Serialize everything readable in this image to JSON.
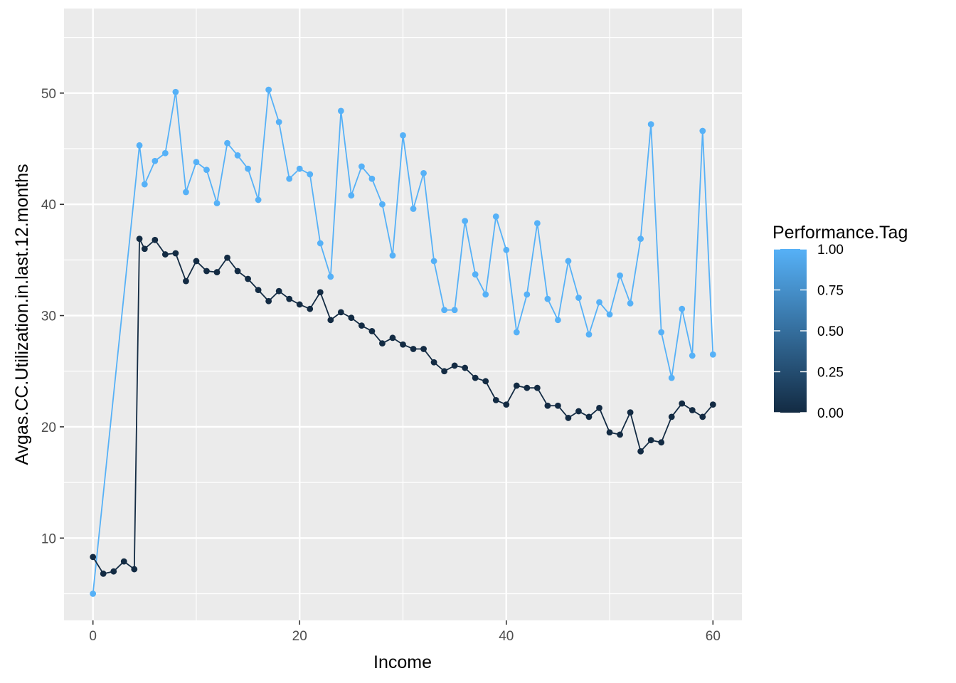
{
  "chart_data": {
    "type": "line",
    "title": "",
    "xlabel": "Income",
    "ylabel": "Avgas.CC.Utilization.in.last.12.months",
    "xlim": [
      -2.8,
      62.8
    ],
    "ylim": [
      2.6,
      57.6
    ],
    "x_ticks": [
      0,
      20,
      40,
      60
    ],
    "x_tick_labels": [
      "0",
      "20",
      "40",
      "60"
    ],
    "y_ticks": [
      10,
      20,
      30,
      40,
      50
    ],
    "y_tick_labels": [
      "10",
      "20",
      "30",
      "40",
      "50"
    ],
    "grid": true,
    "legend": {
      "title": "Performance.Tag",
      "placement": "right",
      "type": "colorbar",
      "low_color": "#132B43",
      "high_color": "#56B1F7",
      "ticks": [
        0,
        0.25,
        0.5,
        0.75,
        1
      ],
      "tick_labels": [
        "0.00",
        "0.25",
        "0.50",
        "0.75",
        "1.00"
      ]
    },
    "series": [
      {
        "tag": 1,
        "color": "#56B1F7",
        "x": [
          0,
          4.5,
          5,
          6,
          7,
          8,
          9,
          10,
          11,
          12,
          13,
          14,
          15,
          16,
          17,
          18,
          19,
          20,
          21,
          22,
          23,
          24,
          25,
          26,
          27,
          28,
          29,
          30,
          31,
          32,
          33,
          34,
          35,
          36,
          37,
          38,
          39,
          40,
          41,
          42,
          43,
          44,
          45,
          46,
          47,
          48,
          49,
          50,
          51,
          52,
          53,
          54,
          55,
          56,
          57,
          58,
          59,
          60
        ],
        "y": [
          5.0,
          45.3,
          41.8,
          43.9,
          44.6,
          50.1,
          41.1,
          43.8,
          43.1,
          40.1,
          45.5,
          44.4,
          43.2,
          40.4,
          50.3,
          47.4,
          42.3,
          43.2,
          42.7,
          36.5,
          33.5,
          48.4,
          40.8,
          43.4,
          42.3,
          40.0,
          35.4,
          46.2,
          39.6,
          42.8,
          34.9,
          30.5,
          30.5,
          38.5,
          33.7,
          31.9,
          38.9,
          35.9,
          28.5,
          31.9,
          38.3,
          31.5,
          29.6,
          34.9,
          31.6,
          28.3,
          31.2,
          30.1,
          33.6,
          31.1,
          36.9,
          47.2,
          28.5,
          24.4,
          30.6,
          26.4,
          46.6,
          26.5
        ]
      },
      {
        "tag": 0,
        "color": "#132B43",
        "x": [
          0,
          1,
          2,
          3,
          4,
          4.5,
          5,
          6,
          7,
          8,
          9,
          10,
          11,
          12,
          13,
          14,
          15,
          16,
          17,
          18,
          19,
          20,
          21,
          22,
          23,
          24,
          25,
          26,
          27,
          28,
          29,
          30,
          31,
          32,
          33,
          34,
          35,
          36,
          37,
          38,
          39,
          40,
          41,
          42,
          43,
          44,
          45,
          46,
          47,
          48,
          49,
          50,
          51,
          52,
          53,
          54,
          55,
          56,
          57,
          58,
          59,
          60
        ],
        "y": [
          8.3,
          6.8,
          7.0,
          7.9,
          7.2,
          36.9,
          36.0,
          36.8,
          35.5,
          35.6,
          33.1,
          34.9,
          34.0,
          33.9,
          35.2,
          34.0,
          33.3,
          32.3,
          31.3,
          32.2,
          31.5,
          31.0,
          30.6,
          32.1,
          29.6,
          30.3,
          29.8,
          29.1,
          28.6,
          27.5,
          28.0,
          27.4,
          27.0,
          27.0,
          25.8,
          25.0,
          25.5,
          25.3,
          24.4,
          24.1,
          22.4,
          22.0,
          23.7,
          23.5,
          23.5,
          21.9,
          21.9,
          20.8,
          21.4,
          20.9,
          21.7,
          19.5,
          19.3,
          21.3,
          17.8,
          18.8,
          18.6,
          20.9,
          22.1,
          21.5,
          20.9,
          22.0
        ]
      }
    ]
  }
}
